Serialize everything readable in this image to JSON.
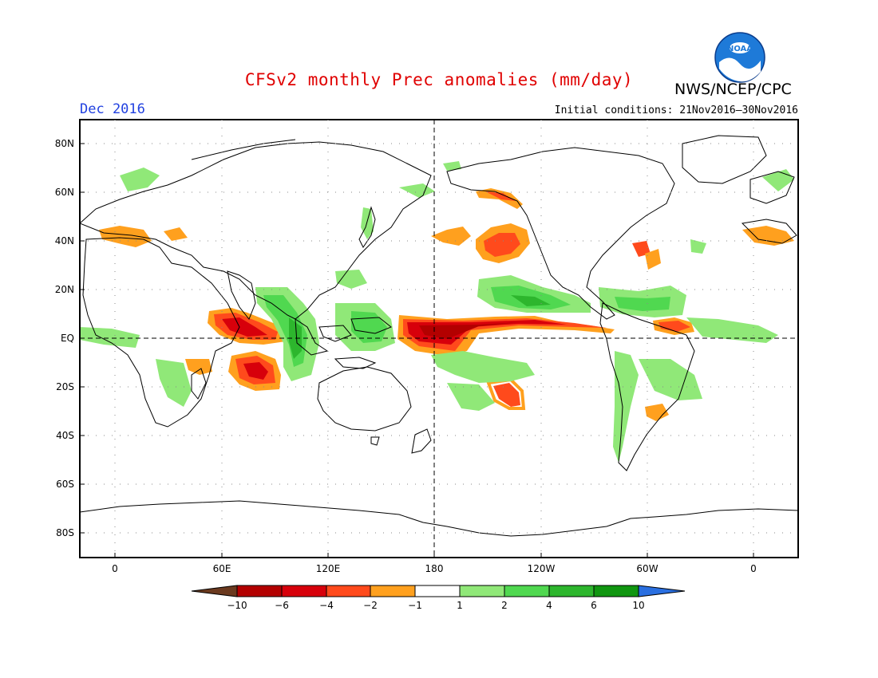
{
  "title": "CFSv2 monthly Prec anomalies (mm/day)",
  "agency": "NWS/NCEP/CPC",
  "logo_text": "NOAA",
  "forecast_month": "Dec 2016",
  "initial_conditions": "Initial conditions: 21Nov2016–30Nov2016",
  "colors": {
    "title": "#e00000",
    "month": "#2040e0"
  },
  "map": {
    "lon_labels": [
      "0",
      "60E",
      "120E",
      "180",
      "120W",
      "60W",
      "0"
    ],
    "lat_labels": [
      "80N",
      "60N",
      "40N",
      "20N",
      "EQ",
      "20S",
      "40S",
      "60S",
      "80S"
    ]
  },
  "colorbar": {
    "labels": [
      "−10",
      "−6",
      "−4",
      "−2",
      "−1",
      "1",
      "2",
      "4",
      "6",
      "10"
    ],
    "colors": [
      "#6b3a1f",
      "#b30000",
      "#d7000b",
      "#ff4a1c",
      "#ffa01e",
      "#ffffff",
      "#90e878",
      "#50d850",
      "#2db62d",
      "#109610",
      "#2a6fe0"
    ]
  }
}
